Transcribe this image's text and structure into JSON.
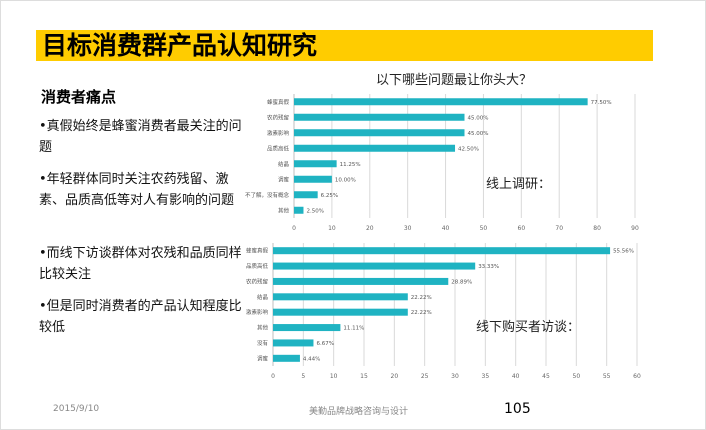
{
  "slide": {
    "title": "目标消费群产品认知研究",
    "subhead": "消费者痛点",
    "bullets": [
      "•真假始终是蜂蜜消费者最关注的问题",
      "•年轻群体同时关注农药残留、激素、品质高低等对人有影响的问题",
      "•而线下访谈群体对农残和品质同样比较关注",
      "•但是同时消费者的产品认知程度比较低"
    ],
    "online_note": "线上调研：",
    "offline_note": "线下购买者访谈：",
    "footer_date": "2015/9/10",
    "footer_company": "美勤品牌战略咨询与设计",
    "page_number": "105"
  },
  "chart_data": [
    {
      "type": "bar",
      "orientation": "horizontal",
      "title": "以下哪些问题最让你头大？",
      "categories": [
        "蜂蜜真假",
        "农药残留",
        "激素影响",
        "品质高低",
        "结晶",
        "调蜜",
        "不了解，没有概念",
        "其他"
      ],
      "values": [
        77.5,
        45.0,
        45.0,
        42.5,
        11.25,
        10.0,
        6.25,
        2.5
      ],
      "data_labels": [
        "77.50%",
        "45.00%",
        "45.00%",
        "42.50%",
        "11.25%",
        "10.00%",
        "6.25%",
        "2.50%"
      ],
      "xlim": [
        0,
        90
      ],
      "xticks": [
        0,
        10,
        20,
        30,
        40,
        50,
        60,
        70,
        80,
        90
      ],
      "grid": true,
      "bar_color": "#1fb3c2"
    },
    {
      "type": "bar",
      "orientation": "horizontal",
      "categories": [
        "蜂蜜真假",
        "品质高低",
        "农药残留",
        "结晶",
        "激素影响",
        "其他",
        "没有",
        "调蜜"
      ],
      "values": [
        55.56,
        33.33,
        28.89,
        22.22,
        22.22,
        11.11,
        6.67,
        4.44
      ],
      "data_labels": [
        "55.56%",
        "33.33%",
        "28.89%",
        "22.22%",
        "22.22%",
        "11.11%",
        "6.67%",
        "4.44%"
      ],
      "xlim": [
        0,
        60
      ],
      "xticks": [
        0,
        5,
        10,
        15,
        20,
        25,
        30,
        35,
        40,
        45,
        50,
        55,
        60
      ],
      "grid": true,
      "bar_color": "#1fb3c2"
    }
  ]
}
